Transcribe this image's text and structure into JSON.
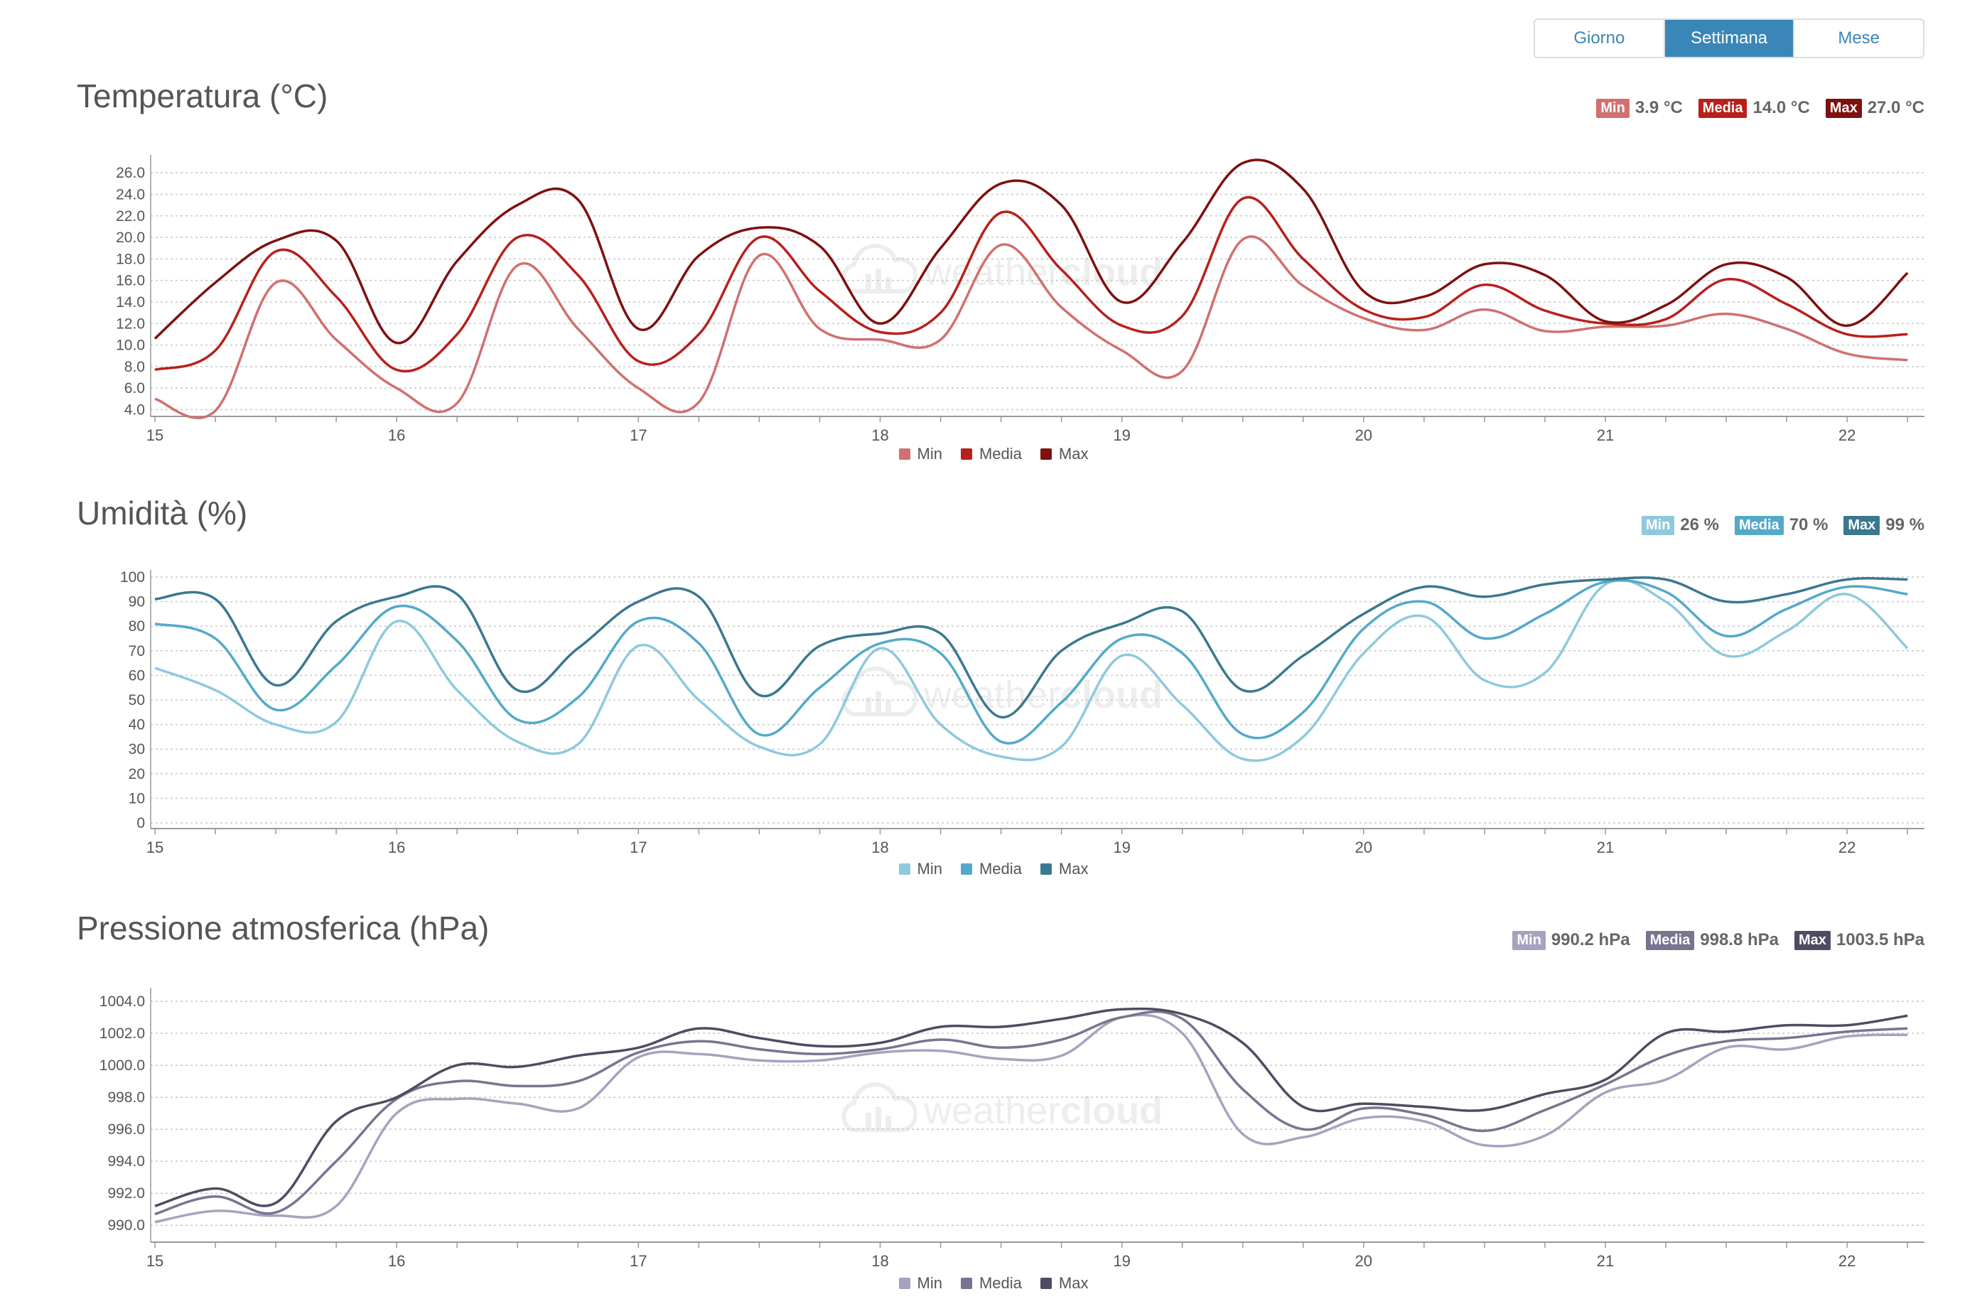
{
  "period_selector": {
    "options": [
      "Giorno",
      "Settimana",
      "Mese"
    ],
    "active": "Settimana"
  },
  "watermark": {
    "brand_light": "weather",
    "brand_bold": "cloud"
  },
  "sections": [
    {
      "id": "temp",
      "title": "Temperatura (°C)",
      "stats": [
        {
          "label": "Min",
          "value": "3.9 °C",
          "color": "#d07070"
        },
        {
          "label": "Media",
          "value": "14.0 °C",
          "color": "#b8201c"
        },
        {
          "label": "Max",
          "value": "27.0 °C",
          "color": "#7e1010"
        }
      ],
      "legend": [
        "Min",
        "Media",
        "Max"
      ]
    },
    {
      "id": "hum",
      "title": "Umidità (%)",
      "stats": [
        {
          "label": "Min",
          "value": "26 %",
          "color": "#8ec9dc"
        },
        {
          "label": "Media",
          "value": "70 %",
          "color": "#54a9c8"
        },
        {
          "label": "Max",
          "value": "99 %",
          "color": "#3a7890"
        }
      ],
      "legend": [
        "Min",
        "Media",
        "Max"
      ]
    },
    {
      "id": "pres",
      "title": "Pressione atmosferica (hPa)",
      "stats": [
        {
          "label": "Min",
          "value": "990.2 hPa",
          "color": "#a6a3bf"
        },
        {
          "label": "Media",
          "value": "998.8 hPa",
          "color": "#77758f"
        },
        {
          "label": "Max",
          "value": "1003.5 hPa",
          "color": "#4e4c62"
        }
      ],
      "legend": [
        "Min",
        "Media",
        "Max"
      ]
    }
  ],
  "chart_data": [
    {
      "type": "line",
      "title": "Temperatura (°C)",
      "x_ticks": [
        "15",
        "16",
        "17",
        "18",
        "19",
        "20",
        "21",
        "22"
      ],
      "xlim": [
        15,
        22.32
      ],
      "y_ticks": [
        "4.0",
        "6.0",
        "8.0",
        "10.0",
        "12.0",
        "14.0",
        "16.0",
        "18.0",
        "20.0",
        "22.0",
        "24.0",
        "26.0"
      ],
      "ylim": [
        3.9,
        27.0
      ],
      "grid": true,
      "x": [
        15.0,
        15.25,
        15.5,
        15.75,
        16.0,
        16.25,
        16.5,
        16.75,
        17.0,
        17.25,
        17.5,
        17.75,
        18.0,
        18.25,
        18.5,
        18.75,
        19.0,
        19.25,
        19.5,
        19.75,
        20.0,
        20.25,
        20.5,
        20.75,
        21.0,
        21.25,
        21.5,
        21.75,
        22.0,
        22.25
      ],
      "series": [
        {
          "name": "Min",
          "color": "#d07070",
          "values": [
            5.0,
            3.9,
            15.8,
            10.5,
            6.0,
            4.6,
            17.4,
            11.5,
            6.0,
            4.7,
            18.3,
            11.5,
            10.5,
            10.5,
            19.3,
            13.5,
            9.5,
            7.6,
            19.8,
            15.5,
            12.5,
            11.4,
            13.3,
            11.3,
            11.7,
            11.8,
            12.9,
            11.5,
            9.2,
            8.6
          ]
        },
        {
          "name": "Media",
          "color": "#b8201c",
          "values": [
            7.7,
            9.5,
            18.7,
            14.5,
            7.7,
            11.0,
            20.0,
            16.5,
            8.5,
            11.0,
            20.0,
            15.0,
            11.2,
            13.0,
            22.3,
            17.0,
            11.8,
            12.7,
            23.6,
            18.0,
            13.3,
            12.6,
            15.6,
            13.2,
            12.0,
            12.4,
            16.1,
            13.8,
            11.0,
            11.0
          ]
        },
        {
          "name": "Max",
          "color": "#7e1010",
          "values": [
            10.6,
            15.8,
            19.7,
            19.7,
            10.2,
            17.8,
            23.0,
            23.5,
            11.5,
            18.3,
            20.9,
            19.2,
            12.0,
            19.0,
            25.0,
            23.0,
            14.0,
            19.5,
            26.9,
            24.5,
            15.0,
            14.5,
            17.5,
            16.5,
            12.2,
            13.7,
            17.5,
            16.3,
            11.8,
            16.7
          ]
        }
      ]
    },
    {
      "type": "line",
      "title": "Umidità (%)",
      "x_ticks": [
        "15",
        "16",
        "17",
        "18",
        "19",
        "20",
        "21",
        "22"
      ],
      "xlim": [
        15,
        22.32
      ],
      "y_ticks": [
        "0",
        "10",
        "20",
        "30",
        "40",
        "50",
        "60",
        "70",
        "80",
        "90",
        "100"
      ],
      "ylim": [
        0,
        100
      ],
      "grid": true,
      "x": [
        15.0,
        15.25,
        15.5,
        15.75,
        16.0,
        16.25,
        16.5,
        16.75,
        17.0,
        17.25,
        17.5,
        17.75,
        18.0,
        18.25,
        18.5,
        18.75,
        19.0,
        19.25,
        19.5,
        19.75,
        20.0,
        20.25,
        20.5,
        20.75,
        21.0,
        21.25,
        21.5,
        21.75,
        22.0,
        22.25
      ],
      "series": [
        {
          "name": "Min",
          "color": "#8ec9dc",
          "values": [
            63,
            54,
            40,
            41,
            82,
            54,
            33,
            32,
            72,
            50,
            31,
            32,
            71,
            40,
            27,
            31,
            68,
            48,
            26,
            35,
            69,
            84,
            58,
            61,
            97,
            90,
            68,
            78,
            93,
            71
          ]
        },
        {
          "name": "Media",
          "color": "#54a9c8",
          "values": [
            81,
            75,
            46,
            64,
            88,
            74,
            42,
            51,
            82,
            73,
            36,
            55,
            73,
            69,
            33,
            49,
            75,
            69,
            36,
            45,
            79,
            90,
            75,
            85,
            98,
            94,
            76,
            87,
            96,
            93
          ]
        },
        {
          "name": "Max",
          "color": "#3a7890",
          "values": [
            91,
            91,
            56,
            82,
            92,
            93,
            54,
            71,
            90,
            92,
            52,
            72,
            77,
            77,
            43,
            70,
            81,
            86,
            54,
            68,
            85,
            96,
            92,
            97,
            99,
            99,
            90,
            93,
            99,
            99
          ]
        }
      ]
    },
    {
      "type": "line",
      "title": "Pressione atmosferica (hPa)",
      "x_ticks": [
        "15",
        "16",
        "17",
        "18",
        "19",
        "20",
        "21",
        "22"
      ],
      "xlim": [
        15,
        22.32
      ],
      "y_ticks": [
        "990.0",
        "992.0",
        "994.0",
        "996.0",
        "998.0",
        "1000.0",
        "1002.0",
        "1004.0"
      ],
      "ylim": [
        989.3,
        1004.4
      ],
      "grid": true,
      "x": [
        15.0,
        15.25,
        15.5,
        15.75,
        16.0,
        16.25,
        16.5,
        16.75,
        17.0,
        17.25,
        17.5,
        17.75,
        18.0,
        18.25,
        18.5,
        18.75,
        19.0,
        19.25,
        19.5,
        19.75,
        20.0,
        20.25,
        20.5,
        20.75,
        21.0,
        21.25,
        21.5,
        21.75,
        22.0,
        22.25
      ],
      "series": [
        {
          "name": "Min",
          "color": "#a6a3bf",
          "values": [
            990.2,
            990.9,
            990.6,
            991.2,
            997.0,
            997.9,
            997.6,
            997.3,
            1000.5,
            1000.7,
            1000.3,
            1000.3,
            1000.8,
            1000.9,
            1000.4,
            1000.6,
            1003.0,
            1002.0,
            995.7,
            995.5,
            996.7,
            996.5,
            995.0,
            995.6,
            998.3,
            999.1,
            1001.1,
            1001.0,
            1001.8,
            1001.9
          ]
        },
        {
          "name": "Media",
          "color": "#77758f",
          "values": [
            990.7,
            991.8,
            990.8,
            994.0,
            997.9,
            999.0,
            998.7,
            999.0,
            1000.8,
            1001.5,
            1001.0,
            1000.7,
            1001.0,
            1001.6,
            1001.1,
            1001.6,
            1003.0,
            1002.9,
            998.5,
            996.0,
            997.3,
            996.9,
            995.9,
            997.2,
            998.8,
            1000.6,
            1001.5,
            1001.7,
            1002.1,
            1002.3
          ]
        },
        {
          "name": "Max",
          "color": "#4e4c62",
          "values": [
            991.2,
            992.3,
            991.4,
            996.5,
            998.0,
            1000.0,
            999.9,
            1000.6,
            1001.1,
            1002.3,
            1001.7,
            1001.2,
            1001.4,
            1002.4,
            1002.4,
            1002.9,
            1003.5,
            1003.2,
            1001.4,
            997.4,
            997.6,
            997.4,
            997.2,
            998.2,
            999.1,
            1002.0,
            1002.1,
            1002.5,
            1002.5,
            1003.1
          ]
        }
      ]
    }
  ]
}
